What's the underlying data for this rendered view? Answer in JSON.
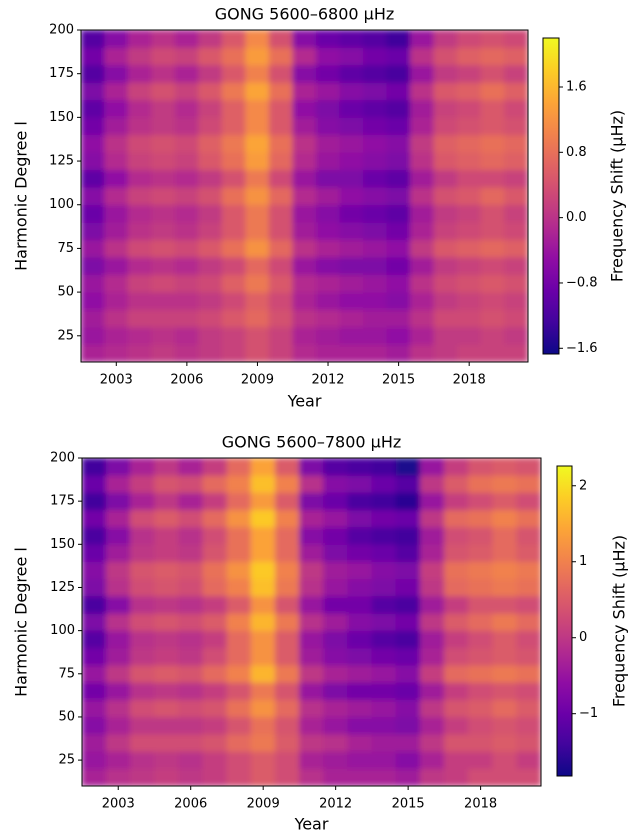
{
  "chart_data": [
    {
      "type": "heatmap",
      "title": "GONG 5600–6800 μHz",
      "xlabel": "Year",
      "ylabel": "Harmonic Degree l",
      "colorbar_label": "Frequency Shift (μHz)",
      "colormap": "plasma",
      "x": [
        2002,
        2003,
        2004,
        2005,
        2006,
        2007,
        2008,
        2009,
        2010,
        2011,
        2012,
        2013,
        2014,
        2015,
        2016,
        2017,
        2018,
        2019,
        2020
      ],
      "y": [
        15,
        25,
        35,
        45,
        55,
        65,
        75,
        85,
        95,
        105,
        115,
        125,
        135,
        145,
        155,
        165,
        175,
        185,
        195
      ],
      "z": [
        [
          -0.2,
          -0.1,
          0.0,
          0.1,
          0.0,
          0.1,
          0.2,
          0.4,
          0.2,
          -0.1,
          -0.2,
          -0.2,
          -0.2,
          -0.3,
          0.0,
          0.1,
          0.2,
          0.2,
          0.2
        ],
        [
          -0.4,
          -0.2,
          -0.1,
          0.0,
          -0.1,
          0.1,
          0.2,
          0.4,
          0.2,
          -0.2,
          -0.3,
          -0.4,
          -0.4,
          -0.5,
          -0.2,
          0.1,
          0.1,
          0.2,
          0.1
        ],
        [
          -0.3,
          0.0,
          0.2,
          0.2,
          0.2,
          0.3,
          0.5,
          0.7,
          0.4,
          0.0,
          -0.1,
          -0.2,
          -0.3,
          -0.3,
          0.0,
          0.3,
          0.3,
          0.4,
          0.3
        ],
        [
          -0.5,
          -0.2,
          0.0,
          0.0,
          0.0,
          0.1,
          0.3,
          0.6,
          0.3,
          -0.2,
          -0.4,
          -0.5,
          -0.5,
          -0.6,
          -0.2,
          0.1,
          0.2,
          0.3,
          0.2
        ],
        [
          -0.4,
          -0.1,
          0.2,
          0.3,
          0.2,
          0.3,
          0.6,
          0.9,
          0.5,
          -0.1,
          -0.2,
          -0.3,
          -0.4,
          -0.5,
          0.0,
          0.3,
          0.4,
          0.5,
          0.4
        ],
        [
          -0.7,
          -0.4,
          -0.1,
          0.0,
          -0.1,
          0.1,
          0.3,
          0.7,
          0.3,
          -0.4,
          -0.6,
          -0.7,
          -0.7,
          -0.8,
          -0.3,
          0.1,
          0.2,
          0.3,
          0.2
        ],
        [
          -0.4,
          0.0,
          0.3,
          0.4,
          0.3,
          0.5,
          0.8,
          1.2,
          0.7,
          0.0,
          -0.2,
          -0.3,
          -0.4,
          -0.5,
          0.1,
          0.5,
          0.6,
          0.7,
          0.6
        ],
        [
          -0.7,
          -0.3,
          0.0,
          0.1,
          0.0,
          0.2,
          0.5,
          0.9,
          0.4,
          -0.3,
          -0.5,
          -0.6,
          -0.7,
          -0.8,
          -0.2,
          0.2,
          0.3,
          0.4,
          0.3
        ],
        [
          -0.9,
          -0.4,
          -0.1,
          0.0,
          -0.1,
          0.1,
          0.5,
          0.9,
          0.4,
          -0.4,
          -0.6,
          -0.8,
          -0.9,
          -1.0,
          -0.3,
          0.1,
          0.2,
          0.4,
          0.2
        ],
        [
          -0.6,
          -0.1,
          0.2,
          0.3,
          0.2,
          0.4,
          0.8,
          1.2,
          0.7,
          -0.1,
          -0.3,
          -0.5,
          -0.6,
          -0.7,
          0.0,
          0.4,
          0.5,
          0.7,
          0.5
        ],
        [
          -1.0,
          -0.5,
          -0.1,
          0.0,
          -0.1,
          0.1,
          0.4,
          0.9,
          0.3,
          -0.4,
          -0.7,
          -0.7,
          -0.9,
          -1.0,
          -0.3,
          0.1,
          0.3,
          0.3,
          0.2
        ],
        [
          -0.6,
          -0.1,
          0.2,
          0.3,
          0.2,
          0.5,
          0.8,
          1.3,
          0.7,
          -0.1,
          -0.4,
          -0.5,
          -0.6,
          -0.7,
          0.0,
          0.5,
          0.6,
          0.7,
          0.6
        ],
        [
          -0.5,
          0.0,
          0.3,
          0.4,
          0.3,
          0.6,
          0.9,
          1.4,
          0.8,
          0.0,
          -0.3,
          -0.4,
          -0.5,
          -0.6,
          0.1,
          0.6,
          0.7,
          0.8,
          0.7
        ],
        [
          -0.8,
          -0.3,
          0.0,
          0.1,
          0.0,
          0.3,
          0.6,
          1.1,
          0.5,
          -0.3,
          -0.6,
          -0.7,
          -0.8,
          -0.9,
          -0.2,
          0.3,
          0.4,
          0.5,
          0.4
        ],
        [
          -1.0,
          -0.5,
          -0.1,
          0.1,
          -0.1,
          0.2,
          0.6,
          1.1,
          0.5,
          -0.5,
          -0.7,
          -0.9,
          -1.0,
          -1.1,
          -0.3,
          0.2,
          0.3,
          0.5,
          0.3
        ],
        [
          -0.7,
          -0.2,
          0.2,
          0.4,
          0.2,
          0.5,
          0.9,
          1.4,
          0.8,
          -0.2,
          -0.4,
          -0.6,
          -0.7,
          -0.8,
          0.0,
          0.5,
          0.6,
          0.8,
          0.6
        ],
        [
          -1.1,
          -0.6,
          -0.2,
          0.0,
          -0.2,
          0.1,
          0.5,
          1.0,
          0.4,
          -0.6,
          -0.8,
          -1.0,
          -1.1,
          -1.2,
          -0.4,
          0.1,
          0.2,
          0.4,
          0.2
        ],
        [
          -0.8,
          -0.2,
          0.1,
          0.3,
          0.2,
          0.5,
          0.8,
          1.3,
          0.8,
          -0.1,
          -0.5,
          -0.6,
          -0.8,
          -0.9,
          0.0,
          0.4,
          0.6,
          0.7,
          0.6
        ],
        [
          -1.1,
          -0.6,
          -0.2,
          0.0,
          -0.2,
          0.1,
          0.5,
          1.1,
          0.4,
          -0.6,
          -0.9,
          -1.0,
          -1.1,
          -1.3,
          -0.4,
          0.1,
          0.3,
          0.4,
          0.3
        ]
      ],
      "xlim": [
        2001.5,
        2020.5
      ],
      "xticks": [
        2003,
        2006,
        2009,
        2012,
        2015,
        2018
      ],
      "ylim": [
        10,
        200
      ],
      "yticks": [
        25,
        50,
        75,
        100,
        125,
        150,
        175,
        200
      ],
      "zlim": [
        -1.67,
        2.2
      ],
      "zticks": [
        {
          "value": -1.6,
          "label": "−1.6"
        },
        {
          "value": -0.8,
          "label": "−0.8"
        },
        {
          "value": 0,
          "label": "0.0"
        },
        {
          "value": 0.8,
          "label": "0.8"
        },
        {
          "value": 1.6,
          "label": "1.6"
        }
      ]
    },
    {
      "type": "heatmap",
      "title": "GONG 5600–7800 μHz",
      "xlabel": "Year",
      "ylabel": "Harmonic Degree l",
      "colorbar_label": "Frequency Shift (μHz)",
      "colormap": "plasma",
      "x": [
        2002,
        2003,
        2004,
        2005,
        2006,
        2007,
        2008,
        2009,
        2010,
        2011,
        2012,
        2013,
        2014,
        2015,
        2016,
        2017,
        2018,
        2019,
        2020
      ],
      "y": [
        15,
        25,
        35,
        45,
        55,
        65,
        75,
        85,
        95,
        105,
        115,
        125,
        135,
        145,
        155,
        165,
        175,
        185,
        195
      ],
      "z": [
        [
          -0.3,
          -0.1,
          0.0,
          0.1,
          0.0,
          0.1,
          0.3,
          0.5,
          0.3,
          -0.1,
          -0.3,
          -0.3,
          -0.3,
          -0.4,
          0.0,
          0.1,
          0.3,
          0.3,
          0.3
        ],
        [
          -0.5,
          -0.3,
          -0.1,
          0.0,
          -0.1,
          0.1,
          0.3,
          0.5,
          0.3,
          -0.3,
          -0.4,
          -0.5,
          -0.5,
          -0.7,
          -0.3,
          0.1,
          0.1,
          0.3,
          0.1
        ],
        [
          -0.4,
          0.0,
          0.3,
          0.3,
          0.3,
          0.4,
          0.7,
          0.9,
          0.5,
          0.0,
          -0.1,
          -0.3,
          -0.4,
          -0.4,
          0.0,
          0.4,
          0.4,
          0.5,
          0.4
        ],
        [
          -0.7,
          -0.3,
          0.0,
          0.0,
          0.0,
          0.1,
          0.4,
          0.8,
          0.4,
          -0.3,
          -0.5,
          -0.7,
          -0.7,
          -0.8,
          -0.3,
          0.1,
          0.3,
          0.4,
          0.3
        ],
        [
          -0.5,
          -0.1,
          0.3,
          0.4,
          0.3,
          0.4,
          0.8,
          1.2,
          0.7,
          -0.1,
          -0.3,
          -0.4,
          -0.5,
          -0.7,
          0.0,
          0.4,
          0.5,
          0.7,
          0.5
        ],
        [
          -0.9,
          -0.5,
          -0.1,
          0.0,
          -0.1,
          0.1,
          0.4,
          0.9,
          0.4,
          -0.5,
          -0.8,
          -0.9,
          -0.9,
          -1.0,
          -0.4,
          0.1,
          0.3,
          0.4,
          0.3
        ],
        [
          -0.5,
          0.0,
          0.4,
          0.5,
          0.4,
          0.7,
          1.0,
          1.6,
          0.9,
          0.0,
          -0.3,
          -0.4,
          -0.5,
          -0.7,
          0.1,
          0.7,
          0.8,
          0.9,
          0.8
        ],
        [
          -0.9,
          -0.4,
          0.0,
          0.1,
          0.0,
          0.3,
          0.7,
          1.2,
          0.5,
          -0.4,
          -0.7,
          -0.8,
          -0.9,
          -1.0,
          -0.3,
          0.3,
          0.4,
          0.5,
          0.4
        ],
        [
          -1.2,
          -0.5,
          -0.1,
          0.0,
          -0.1,
          0.1,
          0.7,
          1.2,
          0.5,
          -0.5,
          -0.8,
          -1.0,
          -1.2,
          -1.3,
          -0.4,
          0.1,
          0.3,
          0.5,
          0.3
        ],
        [
          -0.8,
          -0.1,
          0.3,
          0.4,
          0.3,
          0.5,
          1.0,
          1.6,
          0.9,
          -0.1,
          -0.4,
          -0.7,
          -0.8,
          -0.9,
          0.0,
          0.5,
          0.7,
          0.9,
          0.7
        ],
        [
          -1.3,
          -0.7,
          -0.1,
          0.0,
          -0.1,
          0.1,
          0.5,
          1.2,
          0.4,
          -0.5,
          -0.9,
          -0.9,
          -1.2,
          -1.3,
          -0.4,
          0.1,
          0.4,
          0.4,
          0.3
        ],
        [
          -0.8,
          -0.1,
          0.3,
          0.4,
          0.3,
          0.7,
          1.0,
          1.7,
          0.9,
          -0.1,
          -0.5,
          -0.7,
          -0.8,
          -0.9,
          0.0,
          0.7,
          0.8,
          0.9,
          0.8
        ],
        [
          -0.7,
          0.0,
          0.4,
          0.5,
          0.4,
          0.8,
          1.2,
          1.8,
          1.0,
          0.0,
          -0.4,
          -0.5,
          -0.7,
          -0.8,
          0.1,
          0.8,
          0.9,
          1.0,
          0.9
        ],
        [
          -1.0,
          -0.4,
          0.0,
          0.1,
          0.0,
          0.4,
          0.8,
          1.4,
          0.7,
          -0.4,
          -0.8,
          -0.9,
          -1.0,
          -1.2,
          -0.3,
          0.4,
          0.5,
          0.7,
          0.5
        ],
        [
          -1.3,
          -0.7,
          -0.1,
          0.1,
          -0.1,
          0.3,
          0.8,
          1.4,
          0.7,
          -0.7,
          -0.9,
          -1.2,
          -1.3,
          -1.4,
          -0.4,
          0.3,
          0.4,
          0.7,
          0.4
        ],
        [
          -0.9,
          -0.3,
          0.3,
          0.5,
          0.3,
          0.7,
          1.2,
          1.8,
          1.0,
          -0.3,
          -0.5,
          -0.8,
          -0.9,
          -1.0,
          0.0,
          0.7,
          0.8,
          1.0,
          0.8
        ],
        [
          -1.4,
          -0.8,
          -0.3,
          0.0,
          -0.3,
          0.1,
          0.7,
          1.3,
          0.5,
          -0.8,
          -1.0,
          -1.3,
          -1.4,
          -1.6,
          -0.5,
          0.1,
          0.3,
          0.5,
          0.3
        ],
        [
          -1.0,
          -0.3,
          0.1,
          0.4,
          0.3,
          0.7,
          1.0,
          1.7,
          1.0,
          -0.1,
          -0.7,
          -0.8,
          -1.0,
          -1.2,
          0.0,
          0.5,
          0.8,
          0.9,
          0.8
        ],
        [
          -1.4,
          -0.8,
          -0.3,
          0.0,
          -0.3,
          0.1,
          0.7,
          1.4,
          0.5,
          -0.8,
          -1.2,
          -1.3,
          -1.4,
          -1.7,
          -0.5,
          0.1,
          0.4,
          0.5,
          0.4
        ]
      ],
      "xlim": [
        2001.5,
        2020.5
      ],
      "xticks": [
        2003,
        2006,
        2009,
        2012,
        2015,
        2018
      ],
      "ylim": [
        10,
        200
      ],
      "yticks": [
        25,
        50,
        75,
        100,
        125,
        150,
        175,
        200
      ],
      "zlim": [
        -1.82,
        2.26
      ],
      "zticks": [
        {
          "value": -1,
          "label": "−1"
        },
        0,
        1,
        2
      ]
    }
  ]
}
